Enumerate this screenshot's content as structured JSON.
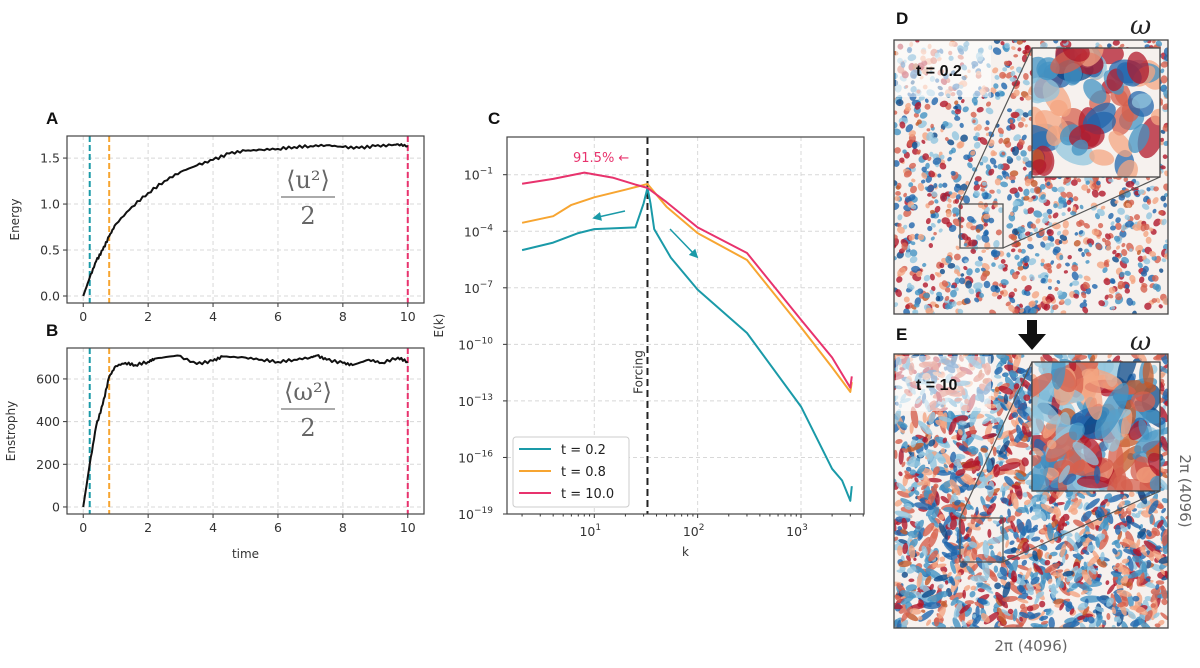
{
  "colors": {
    "t02": "#1a9aa8",
    "t08": "#f7a531",
    "t10": "#e8336d",
    "line": "#111111",
    "forcing": "#222222"
  },
  "chart_data": [
    {
      "id": "A",
      "panel_label": "A",
      "type": "line",
      "xlabel": "",
      "ylabel": "Energy",
      "xlim": [
        -0.5,
        10.5
      ],
      "ylim": [
        -0.076,
        1.74
      ],
      "xticks": [
        0,
        2,
        4,
        6,
        8,
        10
      ],
      "xtick_labels": [
        "0",
        "2",
        "4",
        "6",
        "8",
        "10"
      ],
      "yticks": [
        0,
        0.5,
        1.0,
        1.5
      ],
      "ytick_labels": [
        "0.0",
        "0.5",
        "1.0",
        "1.5"
      ],
      "grid": true,
      "annotation": {
        "numerator": "⟨u²⟩",
        "denominator": "2"
      },
      "vlines": [
        {
          "x": 0.2,
          "color": "#1a9aa8"
        },
        {
          "x": 0.8,
          "color": "#f7a531"
        },
        {
          "x": 10,
          "color": "#e8336d"
        }
      ],
      "series": [
        {
          "x": [
            0,
            0.2,
            0.4,
            0.6,
            0.8,
            1,
            1.5,
            2,
            2.5,
            3,
            3.5,
            4,
            4.5,
            5,
            5.5,
            6,
            6.5,
            7,
            7.5,
            8,
            8.5,
            9,
            9.5,
            9.7,
            10
          ],
          "y": [
            0,
            0.2,
            0.38,
            0.5,
            0.65,
            0.78,
            0.97,
            1.12,
            1.25,
            1.35,
            1.42,
            1.48,
            1.55,
            1.58,
            1.59,
            1.6,
            1.62,
            1.63,
            1.64,
            1.62,
            1.61,
            1.63,
            1.64,
            1.65,
            1.63
          ]
        }
      ]
    },
    {
      "id": "B",
      "panel_label": "B",
      "type": "line",
      "xlabel": "time",
      "ylabel": "Enstrophy",
      "xlim": [
        -0.5,
        10.5
      ],
      "ylim": [
        -33,
        745
      ],
      "xticks": [
        0,
        2,
        4,
        6,
        8,
        10
      ],
      "xtick_labels": [
        "0",
        "2",
        "4",
        "6",
        "8",
        "10"
      ],
      "yticks": [
        0,
        200,
        400,
        600
      ],
      "ytick_labels": [
        "0",
        "200",
        "400",
        "600"
      ],
      "grid": true,
      "annotation": {
        "numerator": "⟨ω²⟩",
        "denominator": "2"
      },
      "vlines": [
        {
          "x": 0.2,
          "color": "#1a9aa8"
        },
        {
          "x": 0.8,
          "color": "#f7a531"
        },
        {
          "x": 10,
          "color": "#e8336d"
        }
      ],
      "series": [
        {
          "x": [
            0,
            0.2,
            0.4,
            0.6,
            0.8,
            1,
            1.3,
            1.6,
            2,
            2.2,
            2.9,
            3.5,
            4,
            4.3,
            5,
            5.5,
            6,
            6.5,
            7,
            7.2,
            7.5,
            8,
            8.3,
            8.8,
            9.2,
            9.7,
            10
          ],
          "y": [
            0,
            200,
            380,
            480,
            610,
            660,
            675,
            665,
            680,
            695,
            710,
            670,
            685,
            705,
            700,
            690,
            680,
            690,
            700,
            710,
            690,
            675,
            665,
            690,
            675,
            700,
            680
          ]
        }
      ]
    },
    {
      "id": "C",
      "panel_label": "C",
      "type": "line",
      "xlabel": "k",
      "ylabel": "E(k)",
      "xscale": "log",
      "yscale": "log",
      "xlim": [
        1.43,
        4070
      ],
      "ylim": [
        1e-19,
        10
      ],
      "xticks": [
        10,
        100,
        1000
      ],
      "xtick_labels": [
        {
          "base": "10",
          "exp": "1"
        },
        {
          "base": "10",
          "exp": "2"
        },
        {
          "base": "10",
          "exp": "3"
        }
      ],
      "yticks": [
        0.1,
        0.0001,
        1e-07,
        1e-10,
        1e-13,
        1e-16,
        1e-19
      ],
      "ytick_labels": [
        {
          "base": "10",
          "exp": "−1"
        },
        {
          "base": "10",
          "exp": "−4"
        },
        {
          "base": "10",
          "exp": "−7"
        },
        {
          "base": "10",
          "exp": "−10"
        },
        {
          "base": "10",
          "exp": "−13"
        },
        {
          "base": "10",
          "exp": "−16"
        },
        {
          "base": "10",
          "exp": "−19"
        }
      ],
      "grid": true,
      "legend_position": "lower-left",
      "forcing": {
        "k": 32.7,
        "label": "Forcing"
      },
      "annotation": "91.5% ←",
      "series": [
        {
          "name": "t = 0.2",
          "color": "#1a9aa8",
          "k": [
            2,
            4,
            7,
            10,
            25,
            30,
            32.7,
            35,
            38,
            55,
            100,
            300,
            1000,
            2000,
            2500,
            3000,
            3100
          ],
          "E": [
            1e-05,
            2.5e-05,
            8e-05,
            0.00013,
            0.00016,
            0.003,
            0.02,
            0.003,
            0.00013,
            4e-06,
            8e-08,
            4e-10,
            5e-14,
            2.5e-17,
            6e-18,
            5e-19,
            3e-18
          ]
        },
        {
          "name": "t = 0.8",
          "color": "#f7a531",
          "k": [
            2,
            4,
            6,
            10,
            20,
            32.7,
            50,
            100,
            300,
            1000,
            2000,
            3000,
            3100
          ],
          "E": [
            0.00028,
            0.00063,
            0.0025,
            0.0063,
            0.016,
            0.032,
            0.002,
            8e-05,
            3e-06,
            8e-10,
            6e-12,
            3e-13,
            1e-12
          ]
        },
        {
          "name": "t = 10.0",
          "color": "#e8336d",
          "k": [
            2,
            4,
            8,
            15,
            25,
            32.7,
            50,
            100,
            300,
            1000,
            2000,
            3000,
            3100
          ],
          "E": [
            0.033,
            0.06,
            0.13,
            0.07,
            0.03,
            0.02,
            0.0035,
            0.00016,
            7e-06,
            2e-09,
            2e-11,
            5e-13,
            2e-12
          ]
        }
      ]
    }
  ],
  "images": {
    "D": {
      "panel_label": "D",
      "symbol": "ω",
      "time_label": "t = 0.2"
    },
    "E": {
      "panel_label": "E",
      "symbol": "ω",
      "time_label": "t = 10",
      "x_extent": "2π (4096)",
      "y_extent": "2π (4096)"
    }
  }
}
